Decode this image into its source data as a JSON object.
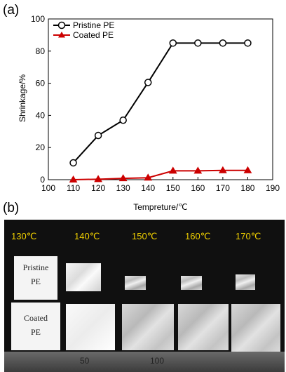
{
  "panel_a_label": "(a)",
  "panel_b_label": "(b)",
  "chart_data": {
    "type": "line",
    "xlabel": "Tempreture/℃",
    "ylabel": "Shrinkage/%",
    "xlim": [
      100,
      190
    ],
    "ylim": [
      0,
      100
    ],
    "xticks": [
      100,
      110,
      120,
      130,
      140,
      150,
      160,
      170,
      180,
      190
    ],
    "yticks": [
      0,
      20,
      40,
      60,
      80,
      100
    ],
    "x": [
      110,
      120,
      130,
      140,
      150,
      160,
      170,
      180
    ],
    "legend_position": "top-left",
    "series": [
      {
        "name": "Pristine PE",
        "marker": "open-circle",
        "color": "#000000",
        "values": [
          10.5,
          27.5,
          37,
          60.5,
          85,
          85,
          85,
          85
        ]
      },
      {
        "name": "Coated PE",
        "marker": "filled-triangle",
        "color": "#cc0000",
        "values": [
          0,
          0.3,
          0.8,
          1.2,
          5.5,
          5.5,
          5.8,
          5.8
        ]
      }
    ]
  },
  "photo": {
    "temperatures": [
      "130℃",
      "140℃",
      "150℃",
      "160℃",
      "170℃"
    ],
    "row1_label": [
      "Pristine",
      "PE"
    ],
    "row2_label": [
      "Coated",
      "PE"
    ],
    "ruler_marks": [
      "50",
      "100"
    ]
  }
}
